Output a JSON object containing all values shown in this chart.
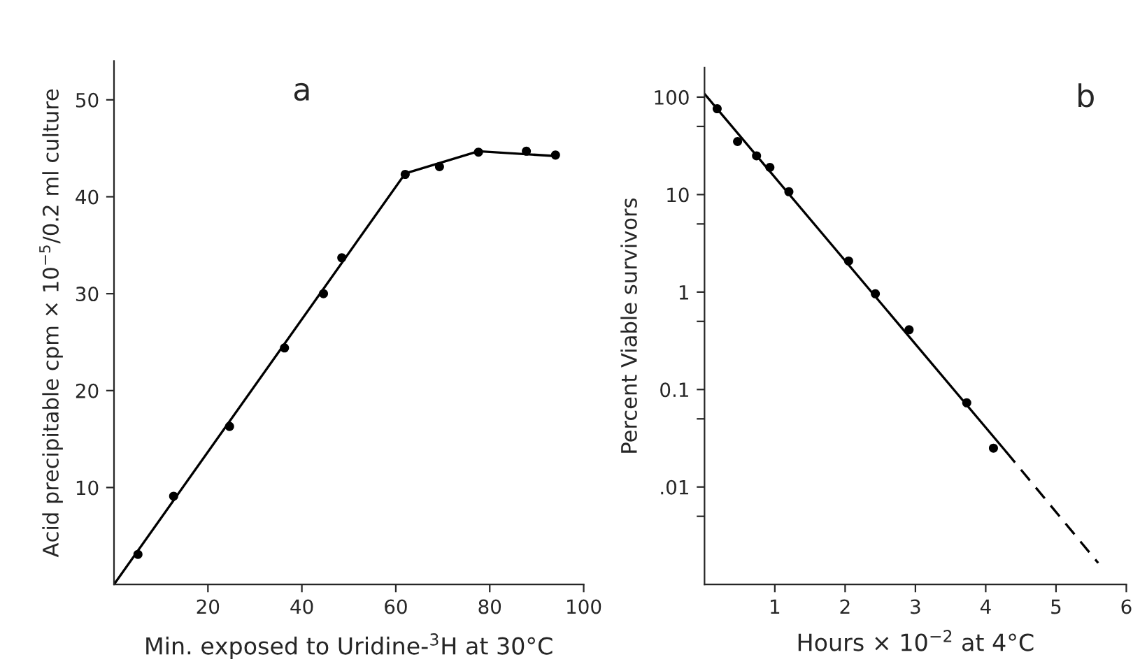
{
  "chart_data": [
    {
      "type": "scatter",
      "title": "a",
      "xlabel": "Min. exposed to Uridine-$^{3}$H at 30°C",
      "ylabel": "Acid precipitable cpm × 10$^{−5}$/0.2 ml culture",
      "xlim": [
        0,
        100
      ],
      "ylim": [
        0,
        54
      ],
      "xticks": [
        20,
        40,
        60,
        80,
        100
      ],
      "yticks": [
        10,
        20,
        30,
        40,
        50
      ],
      "grid": false,
      "legend": false,
      "series": [
        {
          "color": "#000000",
          "marker": "circle",
          "x": [
            5.1,
            12.7,
            24.6,
            36.3,
            44.6,
            48.5,
            62,
            69.3,
            77.6,
            87.8,
            94
          ],
          "values": [
            3.1,
            9.1,
            16.3,
            24.4,
            30,
            33.7,
            42.3,
            43.1,
            44.6,
            44.7,
            44.3
          ]
        },
        {
          "type": "line",
          "color": "#000000",
          "marker": "none",
          "line_style": "solid",
          "x": [
            0,
            62,
            77.6,
            94
          ],
          "values": [
            0,
            42.4,
            44.7,
            44.2
          ]
        }
      ]
    },
    {
      "type": "scatter",
      "title": "b",
      "xlabel": "Hours × 10$^{−2}$ at 4°C",
      "ylabel": "Percent Viable survivors",
      "log": "y",
      "xlim": [
        0,
        6
      ],
      "ylim": [
        0.001,
        200
      ],
      "xticks": [
        1,
        2,
        3,
        4,
        5,
        6
      ],
      "yticks": [
        100,
        {
          "value": 50,
          "label": null
        },
        10,
        {
          "value": 5,
          "label": null
        },
        1,
        {
          "value": 0.5,
          "label": null
        },
        0.1,
        {
          "value": 0.05,
          "label": null
        },
        {
          "value": 0.01,
          "label": ".01"
        },
        {
          "value": 0.005,
          "label": null
        }
      ],
      "grid": false,
      "legend": false,
      "series": [
        {
          "color": "#000000",
          "marker": "circle",
          "x": [
            0.18,
            0.47,
            0.74,
            0.93,
            1.2,
            2.05,
            2.43,
            2.91,
            3.73,
            4.11
          ],
          "values": [
            76,
            35,
            25,
            19,
            10.7,
            2.08,
            0.96,
            0.41,
            0.073,
            0.025
          ]
        },
        {
          "type": "line",
          "color": "#000000",
          "marker": "none",
          "line_style": "solid",
          "x": [
            0,
            4.29
          ],
          "values": [
            108,
            0.023
          ]
        },
        {
          "type": "line",
          "color": "#000000",
          "marker": "none",
          "line_style": "dashed",
          "x": [
            4.29,
            5.6
          ],
          "values": [
            0.023,
            0.00166
          ]
        }
      ]
    }
  ]
}
